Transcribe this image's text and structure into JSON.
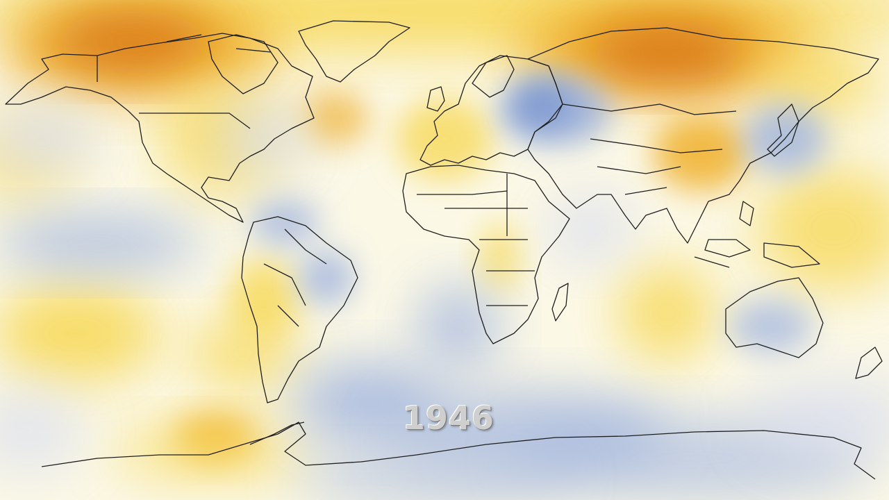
{
  "map": {
    "projection": "equirectangular",
    "palette": {
      "warm_strong": "#d46a0c",
      "warm": "#f0b02a",
      "warm_light": "#f7d95a",
      "neutral": "#fbf8e6",
      "cool_light": "#d9deef",
      "cool": "#9eb2de",
      "cool_strong": "#6f8fcc",
      "coastline": "#1e1e1e"
    },
    "year_label": "1946"
  }
}
